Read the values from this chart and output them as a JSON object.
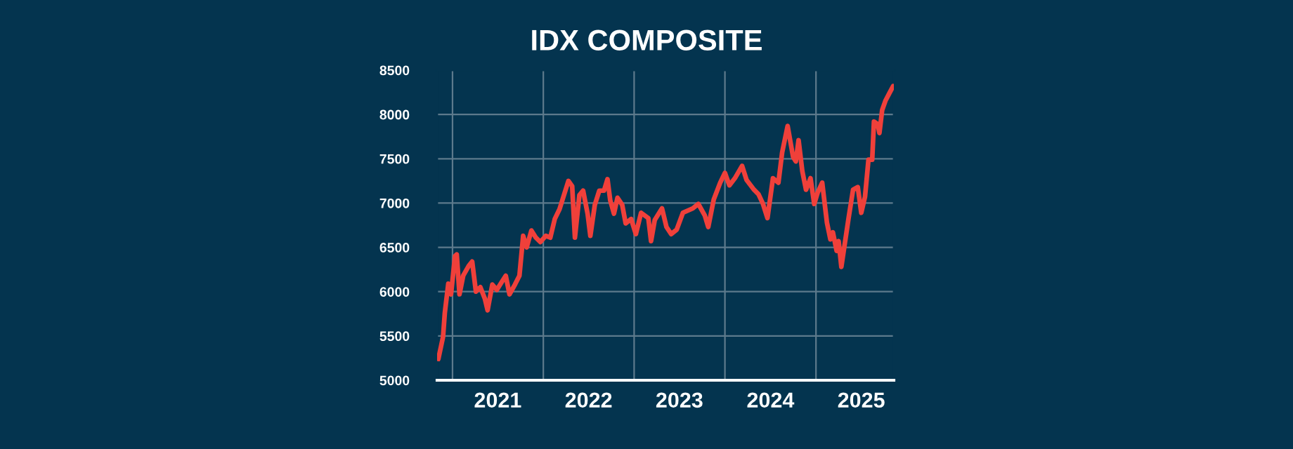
{
  "chart_data": {
    "type": "line",
    "title": "IDX COMPOSITE",
    "x": [
      "2020-11-05",
      "2020-11-24",
      "2020-12-01",
      "2020-12-15",
      "2020-12-26",
      "2021-01-11",
      "2021-01-18",
      "2021-01-29",
      "2021-02-13",
      "2021-03-07",
      "2021-03-21",
      "2021-04-05",
      "2021-04-23",
      "2021-05-11",
      "2021-05-22",
      "2021-06-10",
      "2021-06-28",
      "2021-07-16",
      "2021-08-03",
      "2021-08-18",
      "2021-09-09",
      "2021-09-27",
      "2021-10-12",
      "2021-10-26",
      "2021-11-14",
      "2021-12-02",
      "2021-12-20",
      "2022-01-11",
      "2022-01-29",
      "2022-02-16",
      "2022-03-07",
      "2022-03-25",
      "2022-04-12",
      "2022-04-27",
      "2022-05-08",
      "2022-05-26",
      "2022-06-10",
      "2022-06-28",
      "2022-07-09",
      "2022-07-27",
      "2022-08-14",
      "2022-09-02",
      "2022-09-16",
      "2022-09-27",
      "2022-10-12",
      "2022-10-26",
      "2022-11-14",
      "2022-11-28",
      "2022-12-20",
      "2023-01-08",
      "2023-01-29",
      "2023-02-27",
      "2023-03-10",
      "2023-03-25",
      "2023-04-23",
      "2023-05-11",
      "2023-05-30",
      "2023-06-21",
      "2023-07-16",
      "2023-08-25",
      "2023-09-16",
      "2023-10-12",
      "2023-10-26",
      "2023-11-17",
      "2023-12-13",
      "2024-01-01",
      "2024-01-19",
      "2024-02-10",
      "2024-03-10",
      "2024-03-28",
      "2024-04-27",
      "2024-05-15",
      "2024-06-02",
      "2024-06-20",
      "2024-07-12",
      "2024-08-03",
      "2024-08-18",
      "2024-09-09",
      "2024-10-01",
      "2024-10-12",
      "2024-10-23",
      "2024-11-07",
      "2024-11-22",
      "2024-12-10",
      "2024-12-25",
      "2025-01-08",
      "2025-01-26",
      "2025-02-14",
      "2025-02-28",
      "2025-03-10",
      "2025-03-25",
      "2025-04-02",
      "2025-04-13",
      "2025-05-12",
      "2025-05-30",
      "2025-06-18",
      "2025-07-02",
      "2025-07-17",
      "2025-07-31",
      "2025-08-15",
      "2025-08-22",
      "2025-09-06",
      "2025-09-13",
      "2025-09-24",
      "2025-10-08",
      "2025-10-23",
      "2025-11-07"
    ],
    "series": [
      {
        "color": "#f0403a",
        "values": [
          5240,
          5490,
          5760,
          6090,
          5970,
          6400,
          6420,
          5970,
          6180,
          6290,
          6340,
          6000,
          6050,
          5920,
          5790,
          6080,
          6020,
          6100,
          6180,
          5970,
          6080,
          6180,
          6630,
          6500,
          6690,
          6610,
          6560,
          6630,
          6610,
          6820,
          6930,
          7090,
          7250,
          7190,
          6610,
          7090,
          7140,
          6880,
          6630,
          6980,
          7140,
          7140,
          7270,
          7030,
          6880,
          7060,
          6980,
          6770,
          6820,
          6650,
          6890,
          6830,
          6570,
          6810,
          6940,
          6730,
          6650,
          6700,
          6890,
          6940,
          6990,
          6860,
          6730,
          7040,
          7230,
          7340,
          7200,
          7280,
          7420,
          7260,
          7150,
          7100,
          6990,
          6830,
          7280,
          7230,
          7570,
          7870,
          7520,
          7470,
          7710,
          7360,
          7150,
          7280,
          6990,
          7120,
          7230,
          6780,
          6590,
          6670,
          6460,
          6570,
          6280,
          6830,
          7150,
          7180,
          6890,
          7070,
          7490,
          7490,
          7920,
          7890,
          7790,
          8050,
          8160,
          8240,
          8320
        ]
      }
    ],
    "xlim": [
      "2020-10-31",
      "2025-11-10"
    ],
    "xticks": [
      {
        "value": "2021-01-01",
        "label": null
      },
      {
        "value": "2021-07-02",
        "label": "2021"
      },
      {
        "value": "2022-01-01",
        "label": null
      },
      {
        "value": "2022-07-02",
        "label": "2022"
      },
      {
        "value": "2023-01-01",
        "label": null
      },
      {
        "value": "2023-07-02",
        "label": "2023"
      },
      {
        "value": "2024-01-01",
        "label": null
      },
      {
        "value": "2024-07-02",
        "label": "2024"
      },
      {
        "value": "2025-01-01",
        "label": null
      },
      {
        "value": "2025-07-02",
        "label": "2025"
      }
    ],
    "ylim": [
      5000,
      8500
    ],
    "yticks": [
      5000,
      5500,
      6000,
      6500,
      7000,
      7500,
      8000,
      8500
    ],
    "grid": true,
    "line_style": "solid",
    "marker": "none"
  }
}
